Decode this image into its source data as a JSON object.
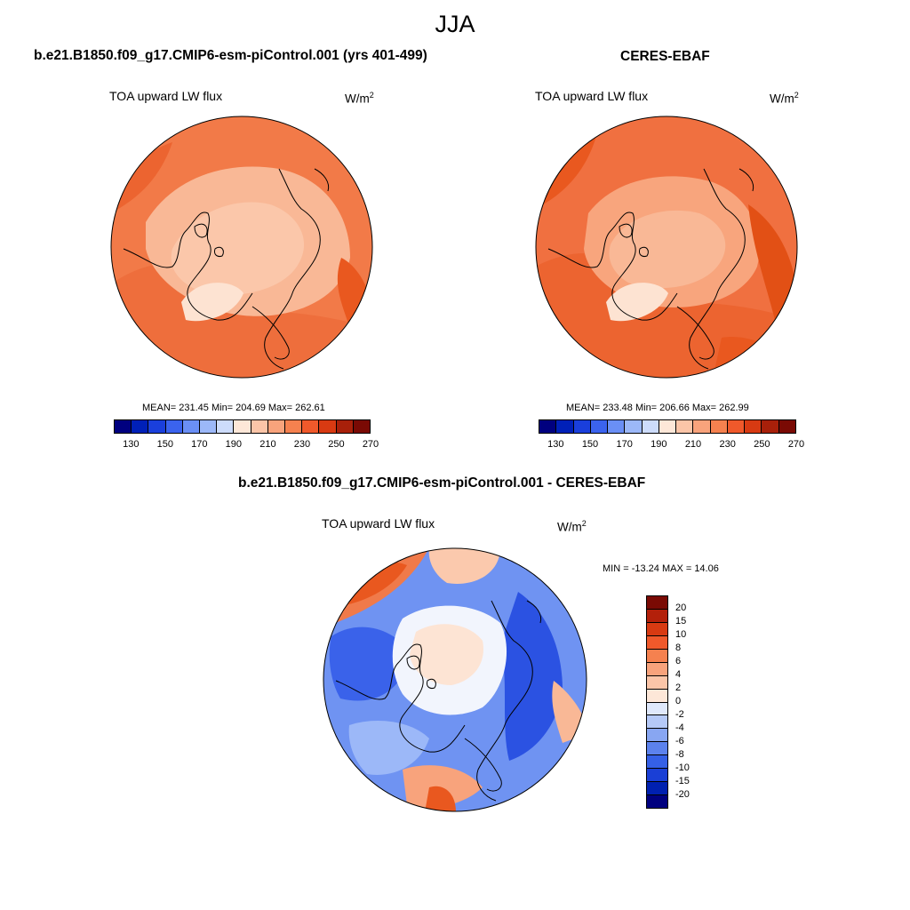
{
  "title": "JJA",
  "panels": {
    "model": {
      "case_title": "b.e21.B1850.f09_g17.CMIP6-esm-piControl.001 (yrs 401-499)",
      "variable": "TOA upward LW flux",
      "units_base": "W/m",
      "units_exp": "2",
      "stats": "MEAN= 231.45  Min= 204.69  Max= 262.61"
    },
    "obs": {
      "case_title": "CERES-EBAF",
      "variable": "TOA upward LW flux",
      "units_base": "W/m",
      "units_exp": "2",
      "stats": "MEAN= 233.48  Min= 206.66  Max= 262.99"
    },
    "diff": {
      "case_title": "b.e21.B1850.f09_g17.CMIP6-esm-piControl.001 - CERES-EBAF",
      "variable": "TOA upward LW flux",
      "units_base": "W/m",
      "units_exp": "2",
      "stats": "MIN = -13.24 MAX =  14.06"
    }
  },
  "colorbar_abs": {
    "ticks": [
      "130",
      "150",
      "170",
      "190",
      "210",
      "230",
      "250",
      "270"
    ],
    "colors": [
      "#00007f",
      "#0020b8",
      "#1a3fdc",
      "#3b63ee",
      "#6a8ff5",
      "#9cb8f8",
      "#cddcfb",
      "#fde7d8",
      "#fbc5a8",
      "#f8a37c",
      "#f5814f",
      "#f0592b",
      "#d83a12",
      "#a8200a",
      "#7a0a04"
    ]
  },
  "colorbar_diff": {
    "ticks": [
      "20",
      "15",
      "10",
      "8",
      "6",
      "4",
      "2",
      "0",
      "-2",
      "-4",
      "-6",
      "-8",
      "-10",
      "-15",
      "-20"
    ],
    "colors": [
      "#7a0a04",
      "#b3200a",
      "#d83a12",
      "#f0592b",
      "#f5814f",
      "#f8a37c",
      "#fbc5a8",
      "#fde7d8",
      "#dfe8fb",
      "#b5c9f7",
      "#88a6f2",
      "#5c82ed",
      "#3560e6",
      "#1a3fd6",
      "#0020b0",
      "#00007f"
    ]
  }
}
